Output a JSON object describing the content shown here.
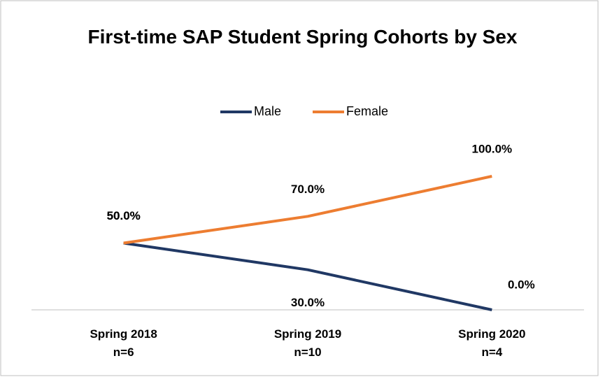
{
  "chart_data": {
    "type": "line",
    "title": "First-time SAP Student Spring Cohorts by Sex",
    "categories": [
      "Spring 2018\nn=6",
      "Spring 2019\nn=10",
      "Spring 2020\nn=4"
    ],
    "series": [
      {
        "name": "Male",
        "color": "#203864",
        "values": [
          50,
          30,
          0
        ],
        "value_labels": [
          "50.0%",
          "30.0%",
          "0.0%"
        ]
      },
      {
        "name": "Female",
        "color": "#ed7d31",
        "values": [
          50,
          70,
          100
        ],
        "value_labels": [
          "50.0%",
          "70.0%",
          "100.0%"
        ]
      }
    ],
    "ylim": [
      0,
      100
    ],
    "legend": "top"
  }
}
